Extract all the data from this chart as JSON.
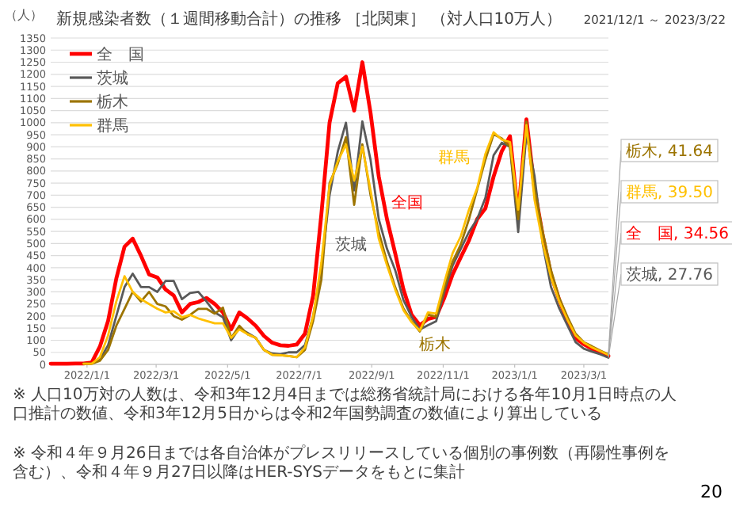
{
  "chart_data": {
    "type": "line",
    "title": "新規感染者数（１週間移動合計）の推移 ［北関東］ （対人口10万人）",
    "subtitle": "2021/12/1 ～ 2023/3/22",
    "ylabel": "（人）",
    "x": [
      "2021-12-01",
      "2021-12-08",
      "2021-12-15",
      "2021-12-22",
      "2021-12-29",
      "2022-01-05",
      "2022-01-12",
      "2022-01-19",
      "2022-01-26",
      "2022-02-02",
      "2022-02-09",
      "2022-02-16",
      "2022-02-23",
      "2022-03-02",
      "2022-03-09",
      "2022-03-16",
      "2022-03-23",
      "2022-03-30",
      "2022-04-06",
      "2022-04-13",
      "2022-04-20",
      "2022-04-27",
      "2022-05-04",
      "2022-05-11",
      "2022-05-18",
      "2022-05-25",
      "2022-06-01",
      "2022-06-08",
      "2022-06-15",
      "2022-06-22",
      "2022-06-29",
      "2022-07-06",
      "2022-07-13",
      "2022-07-20",
      "2022-07-27",
      "2022-08-03",
      "2022-08-10",
      "2022-08-17",
      "2022-08-24",
      "2022-08-31",
      "2022-09-07",
      "2022-09-14",
      "2022-09-21",
      "2022-09-28",
      "2022-10-05",
      "2022-10-12",
      "2022-10-19",
      "2022-10-26",
      "2022-11-02",
      "2022-11-09",
      "2022-11-16",
      "2022-11-23",
      "2022-11-30",
      "2022-12-07",
      "2022-12-14",
      "2022-12-21",
      "2022-12-28",
      "2023-01-04",
      "2023-01-11",
      "2023-01-18",
      "2023-01-25",
      "2023-02-01",
      "2023-02-08",
      "2023-02-15",
      "2023-02-22",
      "2023-03-01",
      "2023-03-08",
      "2023-03-15",
      "2023-03-22"
    ],
    "series": [
      {
        "name": "全　国",
        "color": "#ff0000",
        "values": [
          3,
          3,
          3,
          4,
          4,
          8,
          74,
          180,
          355,
          487,
          520,
          450,
          372,
          360,
          310,
          285,
          215,
          250,
          258,
          275,
          250,
          215,
          145,
          215,
          190,
          160,
          118,
          90,
          79,
          77,
          82,
          127,
          285,
          620,
          1000,
          1163,
          1190,
          1050,
          1250,
          1040,
          777,
          601,
          460,
          311,
          206,
          162,
          188,
          197,
          276,
          372,
          443,
          513,
          601,
          645,
          777,
          882,
          944,
          618,
          1014,
          724,
          531,
          372,
          267,
          179,
          109,
          83,
          65,
          52,
          34.56
        ]
      },
      {
        "name": "茨城",
        "color": "#595959",
        "values": [
          null,
          null,
          null,
          null,
          3,
          3,
          20,
          80,
          200,
          320,
          375,
          320,
          320,
          300,
          345,
          345,
          270,
          295,
          300,
          260,
          215,
          195,
          100,
          150,
          130,
          110,
          60,
          45,
          42,
          50,
          50,
          80,
          200,
          400,
          700,
          880,
          1000,
          720,
          1005,
          846,
          601,
          478,
          390,
          267,
          197,
          144,
          162,
          179,
          302,
          408,
          478,
          548,
          601,
          689,
          865,
          917,
          900,
          548,
          955,
          777,
          496,
          320,
          232,
          162,
          92,
          65,
          53,
          42,
          27.76
        ]
      },
      {
        "name": "栃木",
        "color": "#9c7400",
        "values": [
          null,
          null,
          null,
          null,
          3,
          3,
          15,
          60,
          160,
          230,
          300,
          260,
          300,
          250,
          240,
          200,
          185,
          205,
          230,
          230,
          210,
          235,
          110,
          160,
          125,
          110,
          60,
          40,
          38,
          35,
          30,
          60,
          180,
          350,
          750,
          830,
          940,
          660,
          910,
          700,
          548,
          425,
          320,
          232,
          179,
          136,
          206,
          197,
          320,
          425,
          496,
          601,
          724,
          847,
          952,
          935,
          900,
          601,
          1005,
          724,
          548,
          390,
          276,
          197,
          127,
          92,
          75,
          57,
          41.64
        ]
      },
      {
        "name": "群馬",
        "color": "#ffc000",
        "values": [
          null,
          null,
          null,
          null,
          3,
          3,
          30,
          120,
          260,
          365,
          300,
          270,
          250,
          230,
          215,
          220,
          195,
          205,
          190,
          180,
          170,
          170,
          110,
          145,
          125,
          110,
          60,
          40,
          38,
          35,
          30,
          70,
          200,
          420,
          740,
          840,
          910,
          760,
          900,
          720,
          520,
          410,
          310,
          225,
          175,
          140,
          215,
          210,
          340,
          460,
          530,
          640,
          730,
          870,
          960,
          930,
          920,
          640,
          990,
          680,
          500,
          360,
          260,
          185,
          120,
          90,
          70,
          55,
          39.5
        ]
      }
    ],
    "xlim": [
      "2021-12-01",
      "2023-03-22"
    ],
    "ylim": [
      0,
      1350
    ],
    "xticks": [
      {
        "value": "2022-01-01",
        "label": "2022/1/1"
      },
      {
        "value": "2022-03-01",
        "label": "2022/3/1"
      },
      {
        "value": "2022-05-01",
        "label": "2022/5/1"
      },
      {
        "value": "2022-07-01",
        "label": "2022/7/1"
      },
      {
        "value": "2022-09-01",
        "label": "2022/9/1"
      },
      {
        "value": "2022-11-01",
        "label": "2022/11/1"
      },
      {
        "value": "2023-01-01",
        "label": "2023/1/1"
      },
      {
        "value": "2023-03-01",
        "label": "2023/3/1"
      }
    ],
    "yticks": [
      0,
      50,
      100,
      150,
      200,
      250,
      300,
      350,
      400,
      450,
      500,
      550,
      600,
      650,
      700,
      750,
      800,
      850,
      900,
      950,
      1000,
      1050,
      1100,
      1150,
      1200,
      1250,
      1300,
      1350
    ],
    "grid": "y",
    "legend": "top left",
    "line_style": "solid",
    "annotations": [
      "全国",
      "茨城",
      "群馬",
      "栃木",
      {
        "text": "栃木, 41.64",
        "x": "2023-03-22",
        "y": 41.64
      },
      {
        "text": "群馬, 39.50",
        "x": "2023-03-22",
        "y": 39.5
      },
      {
        "text": "全　国, 34.56",
        "x": "2023-03-22",
        "y": 34.56
      },
      {
        "text": "茨城, 27.76",
        "x": "2023-03-22",
        "y": 27.76
      },
      "※ 人口10万対の人数は、令和3年12月4日までは総務省統計局における各年10月1日時点の人口推計の数値、令和3年12月5日からは令和2年国勢調査の数値により算出している",
      "※ 令和４年９月26日までは各自治体がプレスリリースしている個別の事例数（再陽性事例を含む）、令和４年９月27日以降はHER-SYSデータをもとに集計",
      "20"
    ]
  }
}
